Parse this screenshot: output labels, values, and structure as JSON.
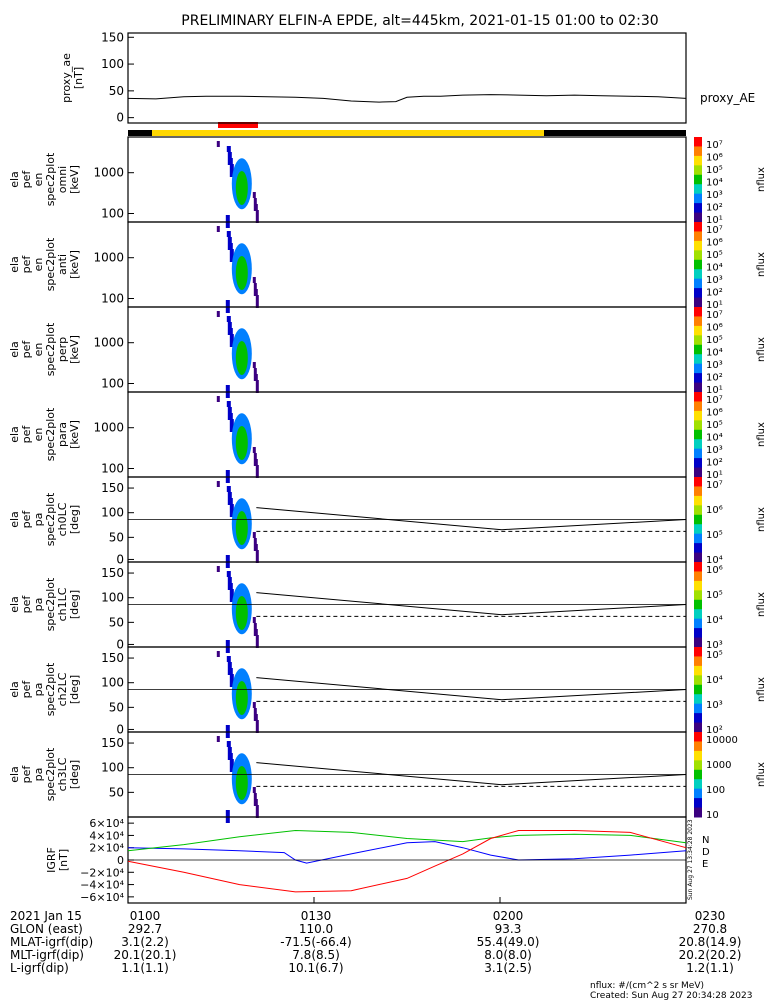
{
  "title": "PRELIMINARY ELFIN-A EPDE, alt=445km, 2021-01-15 01:00 to 02:30",
  "colors": {
    "axis": "#000000",
    "bar_science": "#ffd700",
    "bar_night": "#000000",
    "bar_event": "#ff0000",
    "igrf_x": "#0000ff",
    "igrf_y": "#00c000",
    "igrf_z": "#ff0000"
  },
  "chart_data": [
    {
      "type": "line",
      "panel": "proxy_ae",
      "ylabel_lines": [
        "proxy_ae",
        "[nT]"
      ],
      "yticks": [
        "150",
        "100",
        "50",
        "0"
      ],
      "ytick_values": [
        150,
        100,
        50,
        0
      ],
      "ylim": [
        -10,
        158
      ],
      "series": [
        {
          "name": "proxy_AE",
          "x": [
            0,
            0.05,
            0.1,
            0.14,
            0.2,
            0.25,
            0.3,
            0.35,
            0.4,
            0.45,
            0.48,
            0.5,
            0.53,
            0.56,
            0.6,
            0.65,
            0.7,
            0.75,
            0.8,
            0.85,
            0.9,
            0.95,
            1.0
          ],
          "y": [
            36,
            35,
            39,
            40,
            40,
            39,
            38,
            36,
            31,
            29,
            30,
            38,
            40,
            40,
            42,
            43,
            42,
            41,
            42,
            41,
            40,
            39,
            36
          ]
        }
      ]
    },
    {
      "type": "heatmap",
      "panel": "omni",
      "ylabel_lines": [
        "ela",
        "pef",
        "en",
        "spec2plot",
        "omni",
        "[keV]"
      ],
      "yticks": [
        "1000",
        "100"
      ],
      "colorbar_ticks": [
        "10⁷",
        "10⁶",
        "10⁵",
        "10⁴",
        "10³",
        "10²",
        "10¹"
      ],
      "colorbar_label": "nflux"
    },
    {
      "type": "heatmap",
      "panel": "anti",
      "ylabel_lines": [
        "ela",
        "pef",
        "en",
        "spec2plot",
        "anti",
        "[keV]"
      ],
      "yticks": [
        "1000",
        "100"
      ],
      "colorbar_ticks": [
        "10⁷",
        "10⁶",
        "10⁵",
        "10⁴",
        "10³",
        "10²",
        "10¹"
      ],
      "colorbar_label": "nflux"
    },
    {
      "type": "heatmap",
      "panel": "perp",
      "ylabel_lines": [
        "ela",
        "pef",
        "en",
        "spec2plot",
        "perp",
        "[keV]"
      ],
      "yticks": [
        "1000",
        "100"
      ],
      "colorbar_ticks": [
        "10⁷",
        "10⁶",
        "10⁵",
        "10⁴",
        "10³",
        "10²",
        "10¹"
      ],
      "colorbar_label": "nflux"
    },
    {
      "type": "heatmap",
      "panel": "para",
      "ylabel_lines": [
        "ela",
        "pef",
        "en",
        "spec2plot",
        "para",
        "[keV]"
      ],
      "yticks": [
        "1000",
        "100"
      ],
      "colorbar_ticks": [
        "10⁷",
        "10⁶",
        "10⁵",
        "10⁴",
        "10³",
        "10²",
        "10¹"
      ],
      "colorbar_label": "nflux"
    },
    {
      "type": "heatmap",
      "panel": "ch0LC",
      "ylabel_lines": [
        "ela",
        "pef",
        "pa",
        "spec2plot",
        "ch0LC",
        "[deg]"
      ],
      "yticks": [
        "150",
        "100",
        "50",
        "0"
      ],
      "colorbar_ticks": [
        "10⁷",
        "10⁶",
        "10⁵",
        "10⁴"
      ],
      "colorbar_label": "nflux"
    },
    {
      "type": "heatmap",
      "panel": "ch1LC",
      "ylabel_lines": [
        "ela",
        "pef",
        "pa",
        "spec2plot",
        "ch1LC",
        "[deg]"
      ],
      "yticks": [
        "150",
        "100",
        "50",
        "0"
      ],
      "colorbar_ticks": [
        "10⁶",
        "10⁵",
        "10⁴",
        "10³"
      ],
      "colorbar_label": "nflux"
    },
    {
      "type": "heatmap",
      "panel": "ch2LC",
      "ylabel_lines": [
        "ela",
        "pef",
        "pa",
        "spec2plot",
        "ch2LC",
        "[deg]"
      ],
      "yticks": [
        "150",
        "100",
        "50",
        "0"
      ],
      "colorbar_ticks": [
        "10⁵",
        "10⁴",
        "10³",
        "10²"
      ],
      "colorbar_label": "nflux"
    },
    {
      "type": "heatmap",
      "panel": "ch3LC",
      "ylabel_lines": [
        "ela",
        "pef",
        "pa",
        "spec2plot",
        "ch3LC",
        "[deg]"
      ],
      "yticks": [
        "150",
        "100",
        "50"
      ],
      "colorbar_ticks": [
        "10000",
        "1000",
        "100",
        "10"
      ],
      "colorbar_label": "nflux"
    },
    {
      "type": "line",
      "panel": "igrf",
      "ylabel_lines": [
        "IGRF",
        "[nT]"
      ],
      "yticks": [
        "6×10⁴",
        "4×10⁴",
        "2×10⁴",
        "0",
        "−2×10⁴",
        "−4×10⁴",
        "−6×10⁴"
      ],
      "ytick_values": [
        60000,
        40000,
        20000,
        0,
        -20000,
        -40000,
        -60000
      ],
      "ylim": [
        -70000,
        70000
      ],
      "legend": [
        "N",
        "D",
        "E"
      ],
      "series": [
        {
          "name": "N",
          "x": [
            0,
            0.1,
            0.2,
            0.28,
            0.3,
            0.32,
            0.4,
            0.5,
            0.55,
            0.6,
            0.65,
            0.7,
            0.8,
            0.9,
            1.0
          ],
          "y": [
            20000,
            18000,
            15000,
            12000,
            0,
            -5000,
            10000,
            28000,
            30000,
            20000,
            8000,
            0,
            2000,
            8000,
            15000
          ]
        },
        {
          "name": "D",
          "x": [
            0,
            0.1,
            0.2,
            0.3,
            0.4,
            0.5,
            0.6,
            0.65,
            0.7,
            0.8,
            0.9,
            1.0
          ],
          "y": [
            15000,
            25000,
            38000,
            48000,
            45000,
            35000,
            30000,
            36000,
            40000,
            42000,
            40000,
            28000
          ]
        },
        {
          "name": "E",
          "x": [
            0,
            0.1,
            0.2,
            0.3,
            0.4,
            0.5,
            0.55,
            0.6,
            0.65,
            0.7,
            0.8,
            0.9,
            1.0
          ],
          "y": [
            -2000,
            -20000,
            -40000,
            -52000,
            -50000,
            -30000,
            -10000,
            10000,
            35000,
            48000,
            48000,
            45000,
            20000
          ]
        }
      ]
    }
  ],
  "bottom_table": {
    "rows": [
      [
        "2021 Jan 15",
        "0100",
        "0130",
        "0200",
        "0230"
      ],
      [
        "GLON (east)",
        "292.7",
        "110.0",
        "93.3",
        "270.8"
      ],
      [
        "MLAT-igrf(dip)",
        "3.1(2.2)",
        "-71.5(-66.4)",
        "55.4(49.0)",
        "20.8(14.9)"
      ],
      [
        "MLT-igrf(dip)",
        "20.1(20.1)",
        "7.8(8.5)",
        "8.0(8.0)",
        "20.2(20.2)"
      ],
      [
        "L-igrf(dip)",
        "1.1(1.1)",
        "10.1(6.7)",
        "3.1(2.5)",
        "1.2(1.1)"
      ]
    ]
  },
  "footer": {
    "units": "nflux: #/(cm^2 s sr MeV)",
    "created": "Created: Sun Aug 27 20:34:28 2023",
    "vertical_stamp": "Sun Aug 27 13:34:28 2023"
  }
}
